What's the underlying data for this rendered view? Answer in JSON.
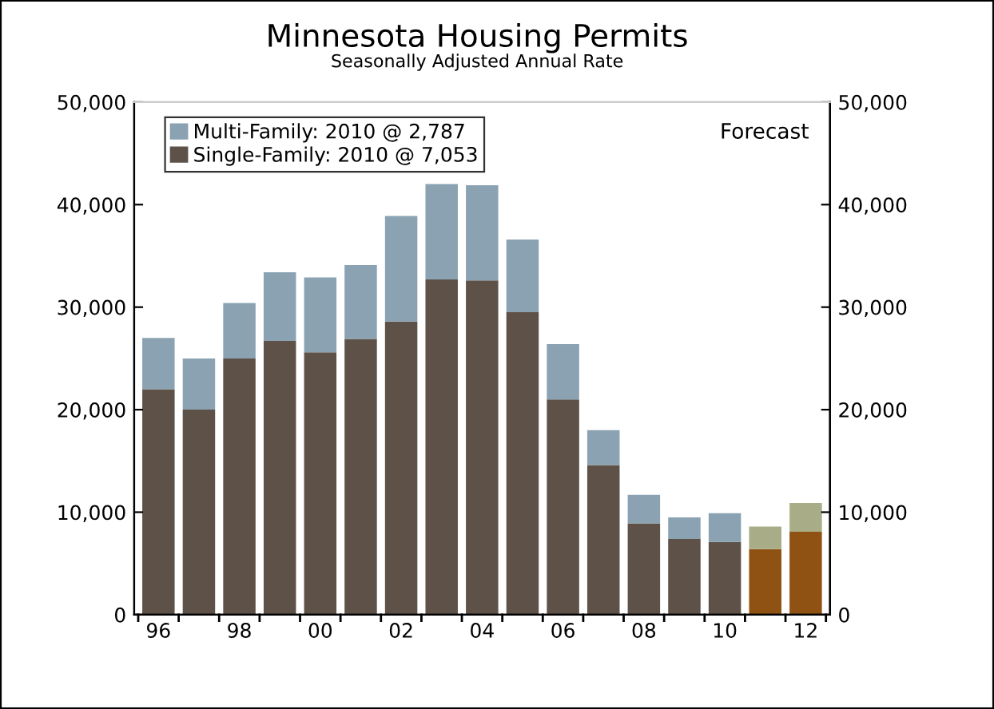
{
  "chart_data": {
    "type": "bar",
    "title": "Minnesota Housing Permits",
    "subtitle": "Seasonally Adjusted Annual Rate",
    "categories": [
      "96",
      null,
      "98",
      null,
      "00",
      null,
      "02",
      null,
      "04",
      null,
      "06",
      null,
      "08",
      null,
      "10",
      null,
      "12"
    ],
    "stacked": true,
    "series": [
      {
        "name": "Single-Family: 2010 @ 7,053",
        "color": "#5e5248",
        "colors": [
          "#5e5248",
          "#5e5248",
          "#5e5248",
          "#5e5248",
          "#5e5248",
          "#5e5248",
          "#5e5248",
          "#5e5248",
          "#5e5248",
          "#5e5248",
          "#5e5248",
          "#5e5248",
          "#5e5248",
          "#5e5248",
          "#5e5248",
          "#8f5213",
          "#8f5213"
        ],
        "values": [
          22000,
          20000,
          25000,
          26700,
          25600,
          26900,
          28600,
          32700,
          32600,
          29500,
          21000,
          14600,
          8900,
          7400,
          7100,
          6400,
          8100
        ]
      },
      {
        "name": "Multi-Family: 2010 @ 2,787",
        "color": "#8aa2b2",
        "colors": [
          "#8aa2b2",
          "#8aa2b2",
          "#8aa2b2",
          "#8aa2b2",
          "#8aa2b2",
          "#8aa2b2",
          "#8aa2b2",
          "#8aa2b2",
          "#8aa2b2",
          "#8aa2b2",
          "#8aa2b2",
          "#8aa2b2",
          "#8aa2b2",
          "#8aa2b2",
          "#8aa2b2",
          "#a9ad87",
          "#a9ad87"
        ],
        "values": [
          5000,
          5000,
          5400,
          6700,
          7300,
          7200,
          10300,
          9300,
          9300,
          7100,
          5400,
          3400,
          2800,
          2100,
          2800,
          2200,
          2800
        ]
      }
    ],
    "ylim": [
      0,
      50000
    ],
    "yticks": [
      0,
      {
        "value": 10000,
        "label": "10,000"
      },
      {
        "value": 20000,
        "label": "20,000"
      },
      {
        "value": 30000,
        "label": "30,000"
      },
      {
        "value": 40000,
        "label": "40,000"
      },
      {
        "value": 50000,
        "label": "50,000"
      }
    ],
    "y2lim": [
      0,
      50000
    ],
    "y2ticks": [
      0,
      {
        "value": 10000,
        "label": "10,000"
      },
      {
        "value": 20000,
        "label": "20,000"
      },
      {
        "value": 30000,
        "label": "30,000"
      },
      {
        "value": 40000,
        "label": "40,000"
      },
      {
        "value": 50000,
        "label": "50,000"
      }
    ],
    "annotations": [
      "Forecast"
    ],
    "legend": "top left",
    "grid": false
  }
}
